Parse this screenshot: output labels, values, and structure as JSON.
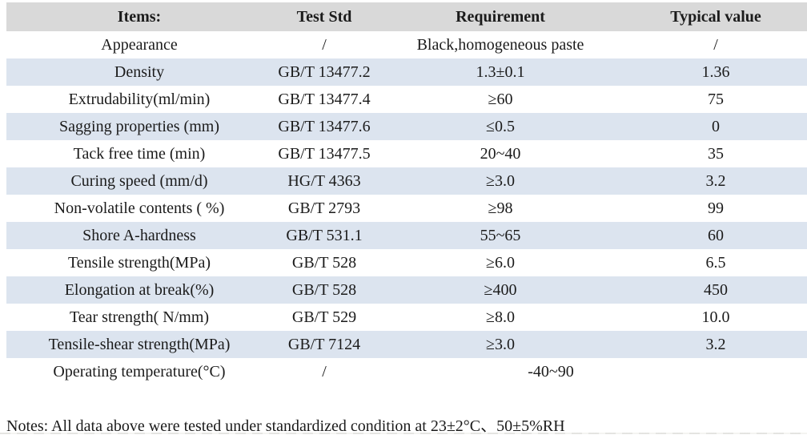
{
  "colors": {
    "header_bg": "#d9d9d9",
    "band_bg": "#dce4ef",
    "text": "#1b1b1b"
  },
  "table": {
    "columns": [
      "Items:",
      "Test Std",
      "Requirement",
      "Typical value"
    ],
    "rows": [
      {
        "item": "Appearance",
        "test_std": "/",
        "requirement": "Black,homogeneous paste",
        "typical": "/"
      },
      {
        "item": "Density",
        "test_std": "GB/T 13477.2",
        "requirement": "1.3±0.1",
        "typical": "1.36"
      },
      {
        "item": "Extrudability(ml/min)",
        "test_std": "GB/T 13477.4",
        "requirement": "≥60",
        "typical": "75"
      },
      {
        "item": "Sagging properties (mm)",
        "test_std": "GB/T 13477.6",
        "requirement": "≤0.5",
        "typical": "0"
      },
      {
        "item": "Tack free time (min)",
        "test_std": "GB/T 13477.5",
        "requirement": "20~40",
        "typical": "35"
      },
      {
        "item": "Curing speed (mm/d)",
        "test_std": "HG/T 4363",
        "requirement": "≥3.0",
        "typical": "3.2"
      },
      {
        "item": "Non-volatile contents ( %)",
        "test_std": "GB/T 2793",
        "requirement": "≥98",
        "typical": "99"
      },
      {
        "item": "Shore A-hardness",
        "test_std": "GB/T 531.1",
        "requirement": "55~65",
        "typical": "60"
      },
      {
        "item": "Tensile strength(MPa)",
        "test_std": "GB/T 528",
        "requirement": "≥6.0",
        "typical": "6.5"
      },
      {
        "item": "Elongation at break(%)",
        "test_std": "GB/T 528",
        "requirement": "≥400",
        "typical": "450"
      },
      {
        "item": "Tear strength( N/mm)",
        "test_std": "GB/T 529",
        "requirement": "≥8.0",
        "typical": "10.0"
      },
      {
        "item": "Tensile-shear strength(MPa)",
        "test_std": "GB/T 7124",
        "requirement": "≥3.0",
        "typical": "3.2"
      },
      {
        "item": "Operating temperature(°C)",
        "test_std": "/",
        "requirement_span": "-40~90"
      }
    ]
  },
  "notes": "Notes: All data above were tested under standardized condition at 23±2°C、50±5%RH"
}
